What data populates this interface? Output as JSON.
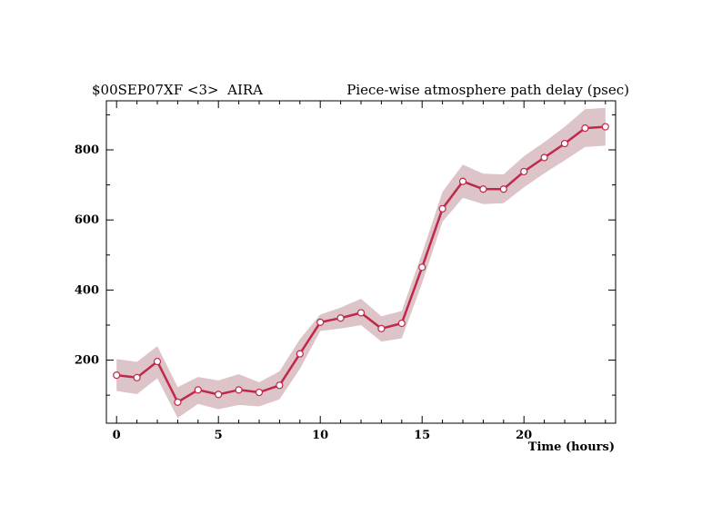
{
  "chart_data": {
    "type": "line",
    "title_left": "$00SEP07XF <3>  AIRA",
    "title_right": "Piece-wise atmosphere path delay (psec)",
    "xlabel": "Time (hours)",
    "ylabel": "",
    "xlim": [
      -0.5,
      24.5
    ],
    "ylim": [
      20,
      940
    ],
    "xticks": [
      0,
      5,
      10,
      15,
      20
    ],
    "yticks": [
      200,
      400,
      600,
      800
    ],
    "xtick_labels": [
      "0",
      "5",
      "10",
      "15",
      "20"
    ],
    "ytick_labels": [
      "200",
      "400",
      "600",
      "800"
    ],
    "grid": false,
    "x": [
      0,
      1,
      2,
      3,
      4,
      5,
      6,
      7,
      8,
      9,
      10,
      11,
      12,
      13,
      14,
      15,
      16,
      17,
      18,
      19,
      20,
      21,
      22,
      23,
      24
    ],
    "y": [
      157,
      150,
      196,
      80,
      115,
      102,
      115,
      108,
      128,
      218,
      308,
      320,
      335,
      290,
      305,
      465,
      632,
      710,
      688,
      688,
      738,
      778,
      818,
      862,
      866
    ],
    "err_low": [
      112,
      103,
      148,
      35,
      75,
      60,
      72,
      68,
      88,
      175,
      283,
      290,
      300,
      253,
      262,
      420,
      595,
      663,
      645,
      648,
      693,
      733,
      770,
      808,
      812
    ],
    "err_high": [
      203,
      195,
      240,
      123,
      152,
      142,
      160,
      137,
      168,
      260,
      330,
      350,
      375,
      325,
      340,
      505,
      680,
      758,
      732,
      730,
      782,
      822,
      866,
      916,
      920
    ],
    "line_color": "#c0284a",
    "band_color": "#dcc4c9",
    "marker_fill": "#ffffff"
  }
}
